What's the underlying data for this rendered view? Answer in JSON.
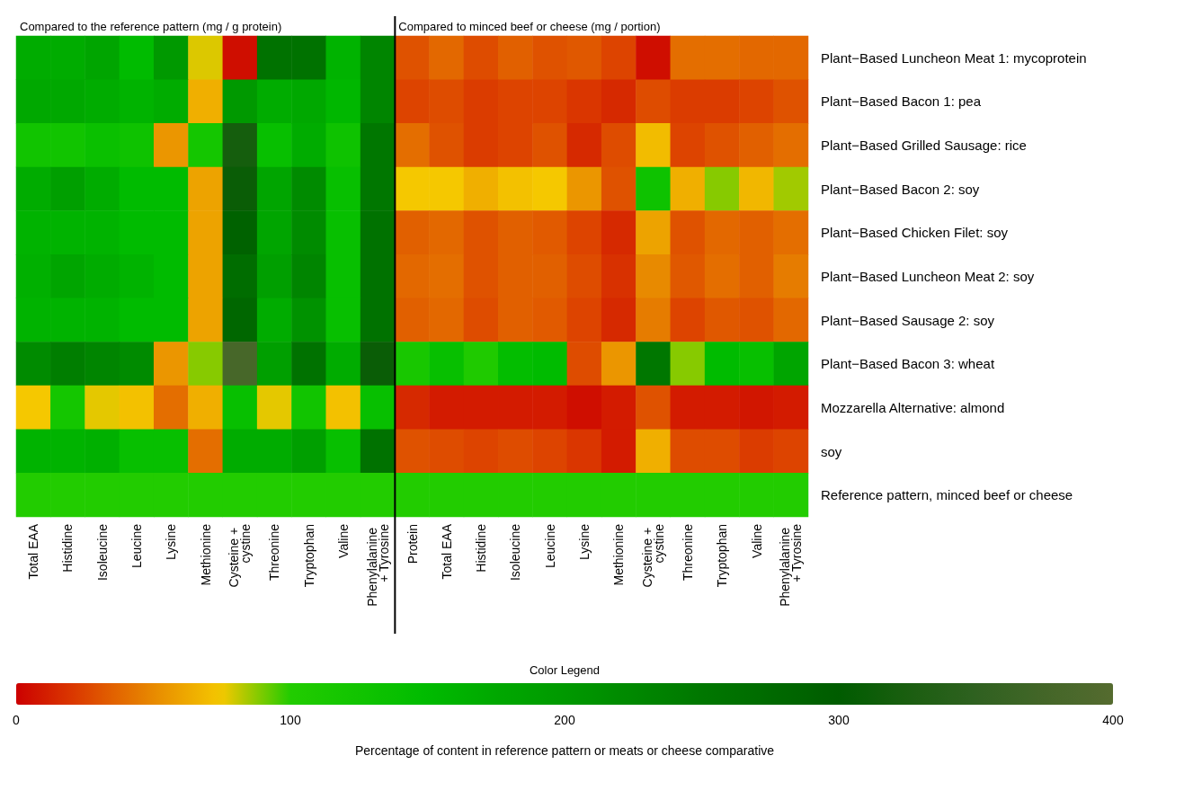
{
  "chart_data": {
    "type": "heatmap",
    "legend_title": "Color Legend",
    "clabel": "Percentage of content in reference pattern or meats or cheese comparative",
    "clim": [
      0,
      400
    ],
    "cticks": [
      0,
      100,
      200,
      300,
      400
    ],
    "annotations": [
      "Compared to the reference pattern (mg / g protein)",
      "Compared to minced beef or cheese (mg / portion)"
    ],
    "categories": [
      "Total EAA",
      "Histidine",
      "Isoleucine",
      "Leucine",
      "Lysine",
      "Methionine",
      "Cysteine + cystine",
      "Threonine",
      "Tryptophan",
      "Valine",
      "Phenylalanine + Tyrosine",
      "Protein",
      "Total EAA",
      "Histidine",
      "Isoleucine",
      "Leucine",
      "Lysine",
      "Methionine",
      "Cysteine + cystine",
      "Threonine",
      "Tryptophan",
      "Valine",
      "Phenylalanine + Tyrosine"
    ],
    "y_categories": [
      "Plant−Based Luncheon Meat 1: mycoprotein",
      "Plant−Based Bacon 1: pea",
      "Plant−Based Grilled Sausage: rice",
      "Plant−Based Bacon 2: soy",
      "Plant−Based Chicken Filet: soy",
      "Plant−Based Luncheon Meat 2: soy",
      "Plant−Based Sausage 2: soy",
      "Plant−Based Bacon 3: wheat",
      "Mozzarella Alternative: almond",
      "soy",
      "Reference pattern, minced beef or cheese"
    ],
    "cells": [
      [
        170,
        170,
        180,
        150,
        200,
        78,
        5,
        260,
        260,
        160,
        230,
        30,
        38,
        28,
        35,
        30,
        32,
        25,
        5,
        40,
        40,
        38,
        38
      ],
      [
        175,
        175,
        170,
        160,
        170,
        65,
        200,
        170,
        175,
        155,
        230,
        25,
        28,
        22,
        25,
        25,
        20,
        15,
        28,
        22,
        22,
        25,
        30
      ],
      [
        125,
        125,
        135,
        130,
        55,
        120,
        320,
        140,
        170,
        130,
        250,
        40,
        30,
        22,
        25,
        30,
        15,
        28,
        70,
        25,
        30,
        35,
        40
      ],
      [
        170,
        190,
        170,
        150,
        150,
        60,
        310,
        180,
        220,
        140,
        250,
        75,
        75,
        65,
        72,
        75,
        55,
        30,
        130,
        65,
        88,
        68,
        85
      ],
      [
        160,
        160,
        160,
        150,
        150,
        60,
        290,
        180,
        220,
        140,
        260,
        35,
        38,
        30,
        35,
        33,
        25,
        15,
        60,
        30,
        38,
        35,
        40
      ],
      [
        165,
        180,
        170,
        160,
        150,
        60,
        270,
        190,
        230,
        140,
        260,
        38,
        40,
        30,
        35,
        35,
        28,
        18,
        50,
        32,
        40,
        35,
        45
      ],
      [
        160,
        160,
        160,
        150,
        150,
        60,
        280,
        170,
        210,
        140,
        260,
        35,
        38,
        28,
        35,
        33,
        25,
        15,
        45,
        25,
        32,
        30,
        38
      ],
      [
        220,
        240,
        230,
        220,
        55,
        88,
        380,
        190,
        260,
        170,
        310,
        115,
        140,
        105,
        145,
        150,
        28,
        55,
        250,
        88,
        150,
        140,
        180
      ],
      [
        75,
        120,
        77,
        72,
        40,
        65,
        140,
        77,
        125,
        72,
        140,
        15,
        10,
        10,
        10,
        10,
        5,
        10,
        30,
        10,
        10,
        8,
        10
      ],
      [
        160,
        160,
        165,
        140,
        140,
        40,
        170,
        170,
        190,
        140,
        260,
        30,
        28,
        25,
        28,
        25,
        20,
        10,
        65,
        28,
        28,
        22,
        25
      ],
      [
        100,
        100,
        100,
        100,
        100,
        100,
        100,
        100,
        100,
        100,
        100,
        100,
        100,
        100,
        100,
        100,
        100,
        100,
        100,
        100,
        100,
        100,
        100
      ]
    ]
  }
}
